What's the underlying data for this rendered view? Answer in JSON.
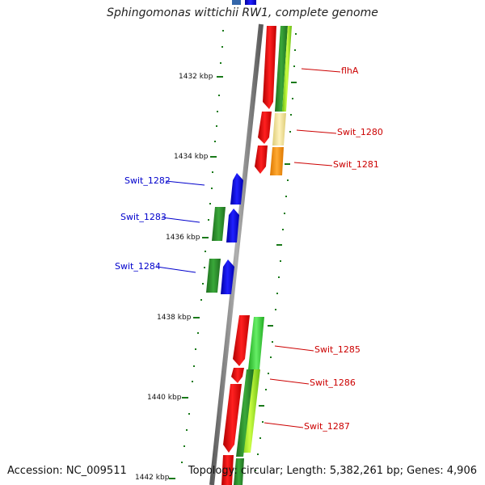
{
  "title": "Sphingomonas wittichii RW1, complete genome",
  "footer": {
    "accession": "Accession: NC_009511",
    "summary": "Topology: circular; Length: 5,382,261 bp; Genes: 4,906"
  },
  "ticks": [
    "1432 kbp",
    "1434 kbp",
    "1436 kbp",
    "1438 kbp",
    "1440 kbp",
    "1442 kbp"
  ],
  "gene_labels": {
    "flhA": "flhA",
    "swit_1280": "Swit_1280",
    "swit_1281": "Swit_1281",
    "swit_1282": "Swit_1282",
    "swit_1283": "Swit_1283",
    "swit_1284": "Swit_1284",
    "swit_1285": "Swit_1285",
    "swit_1286": "Swit_1286",
    "swit_1287": "Swit_1287"
  },
  "colors": {
    "forward_label": "#cc0000",
    "reverse_label": "#0000cc",
    "red": "#ee1111",
    "blue": "#1111ee",
    "dark_green": "#2a8a2a",
    "light_green": "#88dd22",
    "green": "#33cc33",
    "pale_yellow": "#eedd99",
    "orange": "#ff9911",
    "backbone": "#808080",
    "tick": "#1a7a1a"
  }
}
